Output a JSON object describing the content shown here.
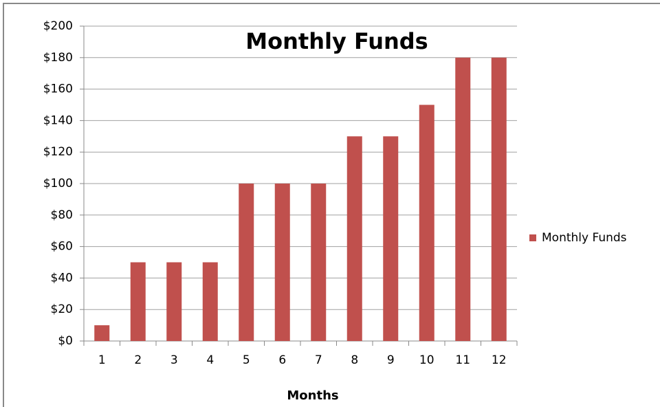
{
  "chart_data": {
    "type": "bar",
    "title": "Monthly Funds",
    "x_label": "Months",
    "categories": [
      "1",
      "2",
      "3",
      "4",
      "5",
      "6",
      "7",
      "8",
      "9",
      "10",
      "11",
      "12"
    ],
    "series": [
      {
        "name": "Monthly Funds",
        "color": "#c0504d",
        "values": [
          10,
          50,
          50,
          50,
          100,
          100,
          100,
          130,
          130,
          150,
          180,
          180
        ]
      }
    ],
    "ylim": [
      0,
      200
    ],
    "yticks": [
      {
        "value": 0,
        "label": "$0"
      },
      {
        "value": 20,
        "label": "$20"
      },
      {
        "value": 40,
        "label": "$40"
      },
      {
        "value": 60,
        "label": "$60"
      },
      {
        "value": 80,
        "label": "$80"
      },
      {
        "value": 100,
        "label": "$100"
      },
      {
        "value": 120,
        "label": "$120"
      },
      {
        "value": 140,
        "label": "$140"
      },
      {
        "value": 160,
        "label": "$160"
      },
      {
        "value": 180,
        "label": "$180"
      },
      {
        "value": 200,
        "label": "$200"
      }
    ],
    "grid": true,
    "legend": "right"
  }
}
